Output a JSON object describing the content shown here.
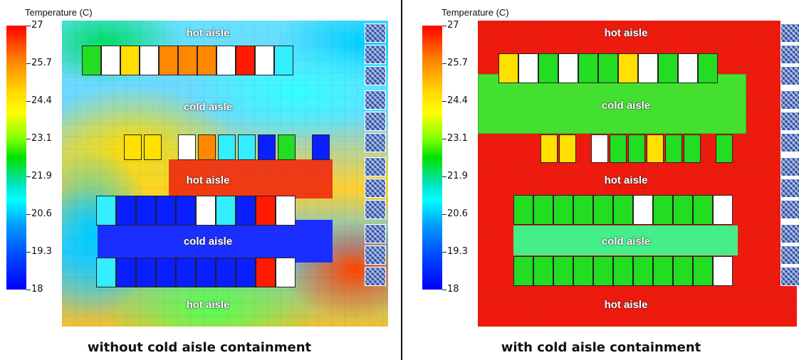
{
  "legend": {
    "title": "Temperature (C)",
    "ticks": [
      "27",
      "25.7",
      "24.4",
      "23.1",
      "21.9",
      "20.6",
      "19.3",
      "18"
    ]
  },
  "panels": [
    {
      "aisles": [
        "hot aisle",
        "cold aisle",
        "hot aisle",
        "cold aisle",
        "hot aisle"
      ],
      "caption": "without cold aisle containment"
    },
    {
      "aisles": [
        "hot aisle",
        "cold aisle",
        "hot aisle",
        "cold aisle",
        "hot aisle"
      ],
      "caption": "with cold aisle containment"
    }
  ],
  "colors": {
    "rack_hot": "#ff1a00",
    "rack_warm": "#ff8800",
    "rack_yellow": "#ffe000",
    "rack_green": "#22dd22",
    "rack_cyan": "#33eeff",
    "rack_blue": "#0a1fff",
    "rack_white": "#ffffff",
    "background_contained": "#ee1a0e",
    "cold_containment": "#44ee88"
  }
}
